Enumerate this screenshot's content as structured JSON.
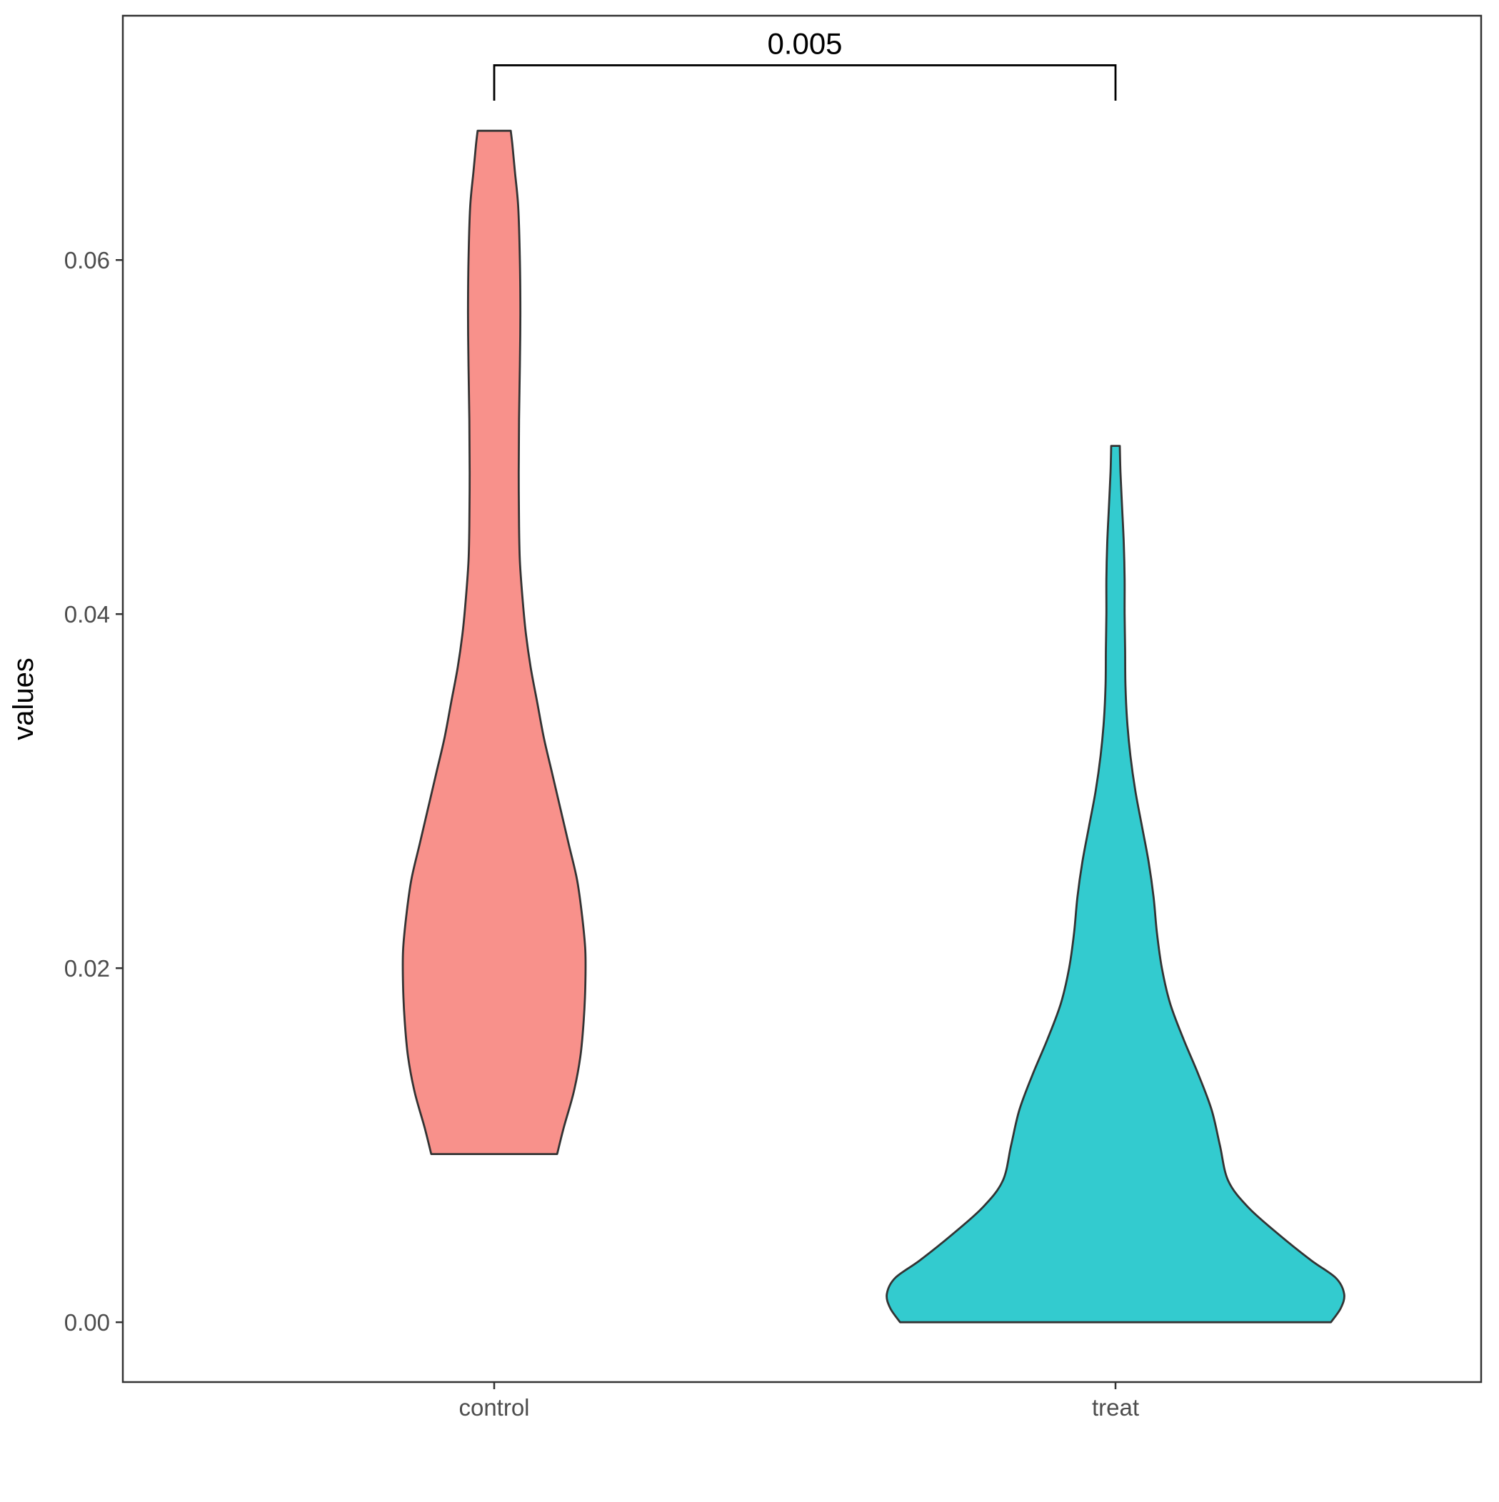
{
  "chart_data": {
    "type": "violin",
    "title": "",
    "xlabel": "",
    "ylabel": "values",
    "categories": [
      "control",
      "treat"
    ],
    "ylim": [
      -0.00338,
      0.0738
    ],
    "yticks": [
      0.0,
      0.02,
      0.04,
      0.06
    ],
    "ytick_labels": [
      "0.00",
      "0.02",
      "0.04",
      "0.06"
    ],
    "grid": false,
    "legend": "none",
    "series": [
      {
        "category": "control",
        "color": "#F8918B",
        "outline": "#333333",
        "min": 0.0095,
        "max": 0.0673,
        "density_profile": [
          [
            0.0095,
            0.38
          ],
          [
            0.011,
            0.42
          ],
          [
            0.013,
            0.48
          ],
          [
            0.015,
            0.52
          ],
          [
            0.017,
            0.54
          ],
          [
            0.019,
            0.55
          ],
          [
            0.021,
            0.55
          ],
          [
            0.023,
            0.53
          ],
          [
            0.025,
            0.5
          ],
          [
            0.027,
            0.45
          ],
          [
            0.029,
            0.4
          ],
          [
            0.031,
            0.35
          ],
          [
            0.033,
            0.3
          ],
          [
            0.035,
            0.26
          ],
          [
            0.037,
            0.22
          ],
          [
            0.039,
            0.19
          ],
          [
            0.041,
            0.17
          ],
          [
            0.043,
            0.155
          ],
          [
            0.045,
            0.15
          ],
          [
            0.048,
            0.148
          ],
          [
            0.051,
            0.15
          ],
          [
            0.054,
            0.155
          ],
          [
            0.057,
            0.158
          ],
          [
            0.06,
            0.155
          ],
          [
            0.063,
            0.145
          ],
          [
            0.065,
            0.125
          ],
          [
            0.0665,
            0.11
          ],
          [
            0.0673,
            0.1
          ]
        ]
      },
      {
        "category": "treat",
        "color": "#33CBCF",
        "outline": "#333333",
        "min": 0.0,
        "max": 0.0495,
        "density_profile": [
          [
            0.0,
            1.3
          ],
          [
            0.0008,
            1.36
          ],
          [
            0.0016,
            1.38
          ],
          [
            0.0025,
            1.33
          ],
          [
            0.0035,
            1.18
          ],
          [
            0.005,
            0.98
          ],
          [
            0.0065,
            0.8
          ],
          [
            0.008,
            0.68
          ],
          [
            0.01,
            0.63
          ],
          [
            0.012,
            0.58
          ],
          [
            0.014,
            0.5
          ],
          [
            0.016,
            0.41
          ],
          [
            0.018,
            0.33
          ],
          [
            0.02,
            0.28
          ],
          [
            0.022,
            0.25
          ],
          [
            0.024,
            0.23
          ],
          [
            0.026,
            0.2
          ],
          [
            0.028,
            0.16
          ],
          [
            0.03,
            0.12
          ],
          [
            0.032,
            0.09
          ],
          [
            0.034,
            0.07
          ],
          [
            0.036,
            0.06
          ],
          [
            0.038,
            0.058
          ],
          [
            0.04,
            0.055
          ],
          [
            0.042,
            0.055
          ],
          [
            0.044,
            0.05
          ],
          [
            0.046,
            0.04
          ],
          [
            0.048,
            0.03
          ],
          [
            0.0495,
            0.026
          ]
        ]
      }
    ],
    "annotations": [
      {
        "type": "significance_bracket",
        "from": "control",
        "to": "treat",
        "label": "0.005",
        "y": 0.071,
        "y_tip": 0.069
      }
    ]
  }
}
